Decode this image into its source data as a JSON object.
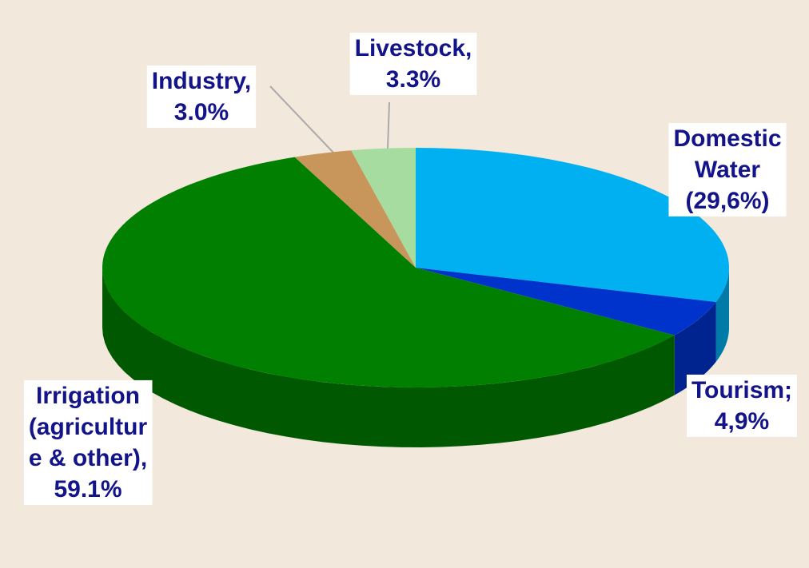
{
  "chart_data": {
    "type": "pie3d",
    "values": [
      29.6,
      4.9,
      59.1,
      3.0,
      3.3
    ],
    "value_labels": [
      [
        "Domestic",
        "Water",
        "(29,6%)"
      ],
      [
        "Tourism;",
        "4,9%"
      ],
      [
        "Irrigation",
        "(agricultur",
        "e & other),",
        "59.1%"
      ],
      [
        "Industry,",
        "3.0%"
      ],
      [
        "Livestock,",
        "3.3%"
      ]
    ],
    "colors": [
      "#00b0f0",
      "#0033cc",
      "#007f00",
      "#c8955a",
      "#a6dca0"
    ]
  }
}
